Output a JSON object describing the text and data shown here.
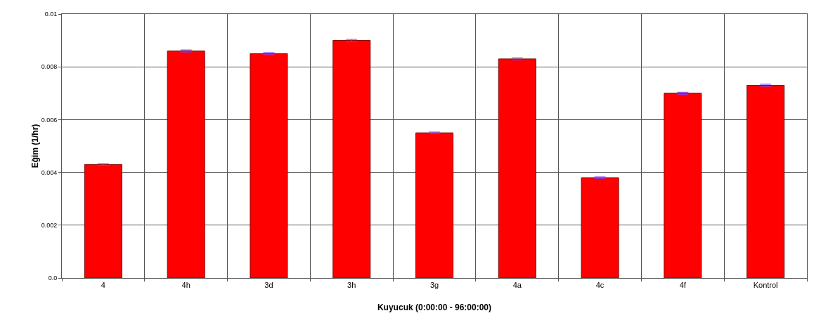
{
  "chart_data": {
    "type": "bar",
    "xlabel": "Kuyucuk (0:00:00 - 96:00:00)",
    "ylabel": "Eğim (1/hr)",
    "categories": [
      "4",
      "4h",
      "3d",
      "3h",
      "3g",
      "4a",
      "4c",
      "4f",
      "Kontrol"
    ],
    "series": [
      {
        "color": "#ff0000",
        "values": [
          0.0043,
          0.0086,
          0.0085,
          0.009,
          0.0055,
          0.0083,
          0.0038,
          0.007,
          0.0073
        ],
        "errors": [
          3e-05,
          4e-05,
          4e-05,
          4e-05,
          3e-05,
          4e-05,
          3e-05,
          4e-05,
          4e-05
        ]
      }
    ],
    "ylim": [
      0,
      0.01
    ],
    "yticks": [
      {
        "value": 0,
        "label": "0.0"
      },
      0.002,
      0.004,
      0.006,
      0.008,
      0.01
    ],
    "grid": true
  }
}
